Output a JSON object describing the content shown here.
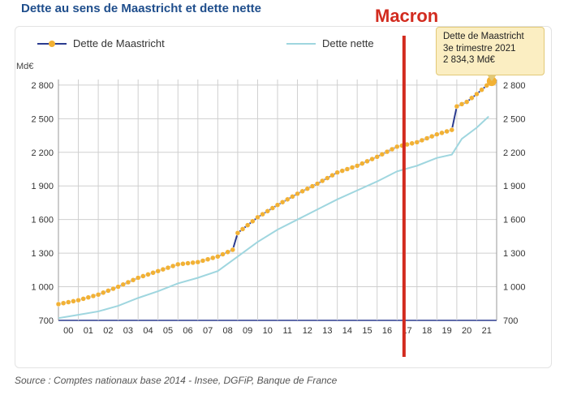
{
  "title": "Dette au sens de Maastricht et dette nette",
  "source": "Source : Comptes nationaux base 2014 - Insee, DGFiP, Banque de France",
  "marker_label": "Macron",
  "annotation": {
    "line1": "Dette de Maastricht",
    "line2": "3e trimestre 2021",
    "line3": "2 834,3 Md€"
  },
  "colors": {
    "maastricht_line": "#2b3b8f",
    "maastricht_marker": "#f2b134",
    "nette_line": "#9fd6df",
    "macron_line": "#d22b1f",
    "title": "#1f4e8c"
  },
  "chart_data": {
    "type": "line",
    "ylabel": "Md€",
    "ylim": [
      700,
      2850
    ],
    "yticks": [
      700,
      1000,
      1300,
      1600,
      1900,
      2200,
      2500,
      2800
    ],
    "ytick_labels": [
      "700",
      "1 000",
      "1 300",
      "1 600",
      "1 900",
      "2 200",
      "2 500",
      "2 800"
    ],
    "x_categories": [
      "00",
      "01",
      "02",
      "03",
      "04",
      "05",
      "06",
      "07",
      "08",
      "09",
      "10",
      "11",
      "12",
      "13",
      "14",
      "15",
      "16",
      "17",
      "18",
      "19",
      "20",
      "21"
    ],
    "grid": true,
    "legend_position": "top",
    "series": [
      {
        "name": "Dette de Maastricht",
        "x": [
          2000.0,
          2001.0,
          2002.0,
          2003.0,
          2004.0,
          2005.0,
          2006.0,
          2007.0,
          2008.0,
          2008.75,
          2009.0,
          2010.0,
          2011.0,
          2012.0,
          2013.0,
          2014.0,
          2015.0,
          2016.0,
          2017.0,
          2018.0,
          2019.0,
          2019.75,
          2020.0,
          2020.5,
          2021.0,
          2021.75
        ],
        "y": [
          845,
          880,
          930,
          1000,
          1080,
          1140,
          1200,
          1220,
          1270,
          1330,
          1480,
          1620,
          1730,
          1830,
          1920,
          2020,
          2080,
          2160,
          2250,
          2290,
          2360,
          2400,
          2610,
          2650,
          2720,
          2834.3
        ]
      },
      {
        "name": "Dette nette",
        "x": [
          2000.0,
          2001.0,
          2002.0,
          2003.0,
          2004.0,
          2005.0,
          2006.0,
          2007.0,
          2008.0,
          2009.0,
          2010.0,
          2011.0,
          2012.0,
          2013.0,
          2014.0,
          2015.0,
          2016.0,
          2017.0,
          2018.0,
          2019.0,
          2019.75,
          2020.25,
          2021.0,
          2021.6
        ],
        "y": [
          720,
          750,
          780,
          830,
          900,
          960,
          1030,
          1080,
          1140,
          1270,
          1400,
          1510,
          1600,
          1690,
          1780,
          1860,
          1940,
          2030,
          2080,
          2150,
          2180,
          2320,
          2420,
          2520
        ]
      }
    ],
    "macron_x": 2017.35,
    "annotation_point": {
      "x": 2021.75,
      "y": 2834.3
    }
  }
}
